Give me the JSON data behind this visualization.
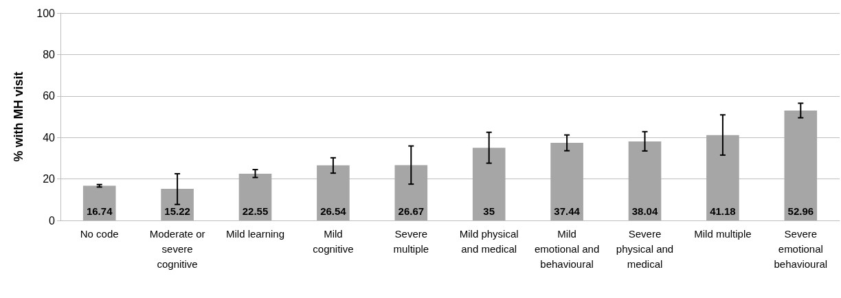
{
  "chart_data": {
    "type": "bar",
    "ylabel": "% with MH visit",
    "categories": [
      "No code",
      "Moderate or severe cognitive",
      "Mild learning",
      "Mild cognitive",
      "Severe multiple",
      "Mild physical and medical",
      "Mild emotional and behavioural",
      "Severe physical and medical",
      "Mild multiple",
      "Severe emotional behavioural"
    ],
    "values": [
      16.74,
      15.22,
      22.55,
      26.54,
      26.67,
      35,
      37.44,
      38.04,
      41.18,
      52.96
    ],
    "errors": [
      [
        16.1,
        17.3
      ],
      [
        7.7,
        22.5
      ],
      [
        20.7,
        24.5
      ],
      [
        22.8,
        30.2
      ],
      [
        17.5,
        35.9
      ],
      [
        27.6,
        42.5
      ],
      [
        33.6,
        41.2
      ],
      [
        33.5,
        42.8
      ],
      [
        31.5,
        50.9
      ],
      [
        49.5,
        56.5
      ]
    ],
    "color": "#a6a6a6",
    "ylim": [
      0,
      100
    ],
    "yticks": [
      0,
      20,
      40,
      60,
      80,
      100
    ],
    "grid": "y",
    "data_labels": true
  }
}
